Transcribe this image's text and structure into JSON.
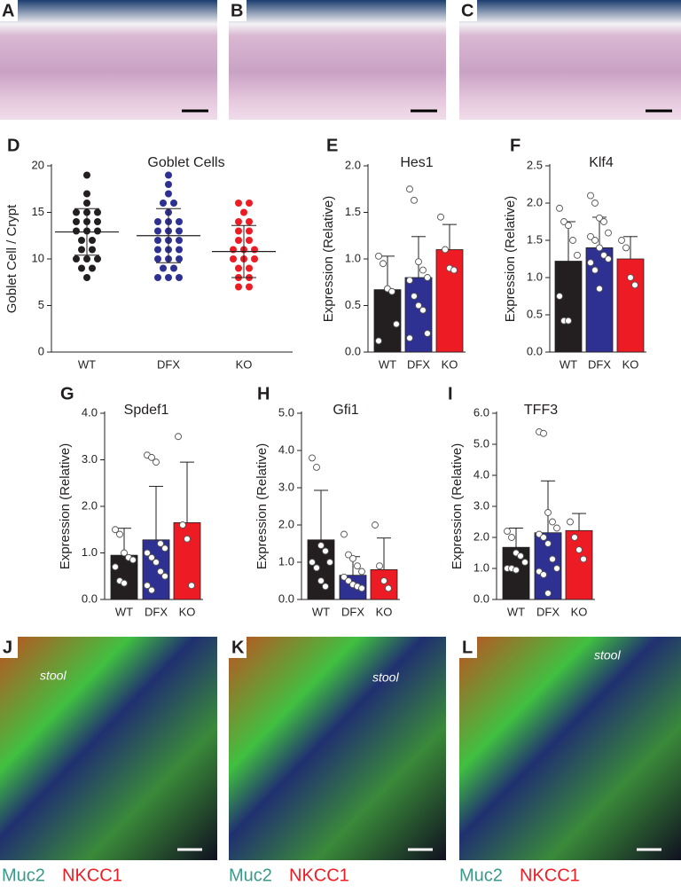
{
  "images": [
    {
      "label": "A"
    },
    {
      "label": "B"
    },
    {
      "label": "C"
    },
    {
      "label": "J",
      "annotation": "stool",
      "channels": [
        "Muc2",
        "NKCC1"
      ]
    },
    {
      "label": "K",
      "annotation": "stool",
      "channels": [
        "Muc2",
        "NKCC1"
      ]
    },
    {
      "label": "L",
      "annotation": "stool",
      "channels": [
        "Muc2",
        "NKCC1"
      ]
    }
  ],
  "chart_data": [
    {
      "type": "dot",
      "panel": "D",
      "title": "Goblet Cells",
      "ylabel": "Goblet Cell / Crypt",
      "categories": [
        "WT",
        "DFX",
        "KO"
      ],
      "ylim": [
        0,
        20
      ],
      "yticks": [
        0,
        5,
        10,
        15,
        20
      ],
      "groups": [
        {
          "color": "#231f20",
          "mean": 12.9,
          "sd": 2.5,
          "values": [
            19,
            17,
            16,
            15,
            15,
            15,
            14,
            14,
            14,
            13,
            13,
            13,
            12,
            12,
            11,
            11,
            10,
            10,
            10,
            9,
            9,
            8
          ]
        },
        {
          "color": "#2e3192",
          "mean": 12.5,
          "sd": 2.9,
          "values": [
            19,
            18,
            17,
            16,
            16,
            15,
            14,
            14,
            14,
            13,
            13,
            13,
            12,
            12,
            12,
            11,
            11,
            11,
            10,
            10,
            10,
            9,
            9,
            8,
            8,
            8
          ]
        },
        {
          "color": "#ed1c24",
          "mean": 10.8,
          "sd": 2.8,
          "values": [
            16,
            16,
            15,
            14,
            14,
            13,
            13,
            12,
            12,
            11,
            11,
            11,
            10,
            10,
            10,
            9,
            9,
            8,
            8,
            7,
            7
          ]
        }
      ]
    },
    {
      "type": "bar",
      "panel": "E",
      "title": "Hes1",
      "ylabel": "Expression (Relative)",
      "categories": [
        "WT",
        "DFX",
        "KO"
      ],
      "colors": [
        "#231f20",
        "#2e3192",
        "#ed1c24"
      ],
      "ylim": [
        0,
        2
      ],
      "yticks": [
        {
          "value": 0,
          "label": "0.0"
        },
        0.5,
        {
          "value": 1,
          "label": "1.0"
        },
        1.5,
        {
          "value": 2,
          "label": "2.0"
        }
      ],
      "values": [
        0.67,
        0.8,
        1.1
      ],
      "errors": [
        0.36,
        0.44,
        0.27
      ],
      "points": [
        [
          1.03,
          0.95,
          0.68,
          0.65,
          0.3,
          0.12
        ],
        [
          1.75,
          1.63,
          0.97,
          0.88,
          0.8,
          0.77,
          0.6,
          0.5,
          0.45,
          0.2,
          0.15
        ],
        [
          1.45,
          1.1,
          0.9,
          0.88
        ]
      ]
    },
    {
      "type": "bar",
      "panel": "F",
      "title": "Klf4",
      "ylabel": "Expression (Relative)",
      "categories": [
        "WT",
        "DFX",
        "KO"
      ],
      "colors": [
        "#231f20",
        "#2e3192",
        "#ed1c24"
      ],
      "ylim": [
        0,
        2.5
      ],
      "yticks": [
        {
          "value": 0,
          "label": "0.0"
        },
        0.5,
        {
          "value": 1,
          "label": "1.0"
        },
        1.5,
        {
          "value": 2,
          "label": "2.0"
        },
        2.5
      ],
      "values": [
        1.22,
        1.4,
        1.25
      ],
      "errors": [
        0.53,
        0.41,
        0.3
      ],
      "points": [
        [
          1.93,
          1.75,
          1.7,
          1.5,
          1.3,
          0.75,
          0.42,
          0.42
        ],
        [
          2.1,
          2.0,
          1.8,
          1.75,
          1.6,
          1.55,
          1.5,
          1.4,
          1.3,
          1.25,
          1.2,
          1.1,
          0.85
        ],
        [
          1.5,
          1.4,
          1.0,
          0.9
        ]
      ]
    },
    {
      "type": "bar",
      "panel": "G",
      "title": "Spdef1",
      "ylabel": "Expression (Relative)",
      "categories": [
        "WT",
        "DFX",
        "KO"
      ],
      "colors": [
        "#231f20",
        "#2e3192",
        "#ed1c24"
      ],
      "ylim": [
        0,
        4
      ],
      "yticks": [
        {
          "value": 0,
          "label": "0.0"
        },
        {
          "value": 1,
          "label": "1.0"
        },
        {
          "value": 2,
          "label": "2.0"
        },
        {
          "value": 3,
          "label": "3.0"
        },
        {
          "value": 4,
          "label": "4.0"
        }
      ],
      "values": [
        0.95,
        1.28,
        1.65
      ],
      "errors": [
        0.58,
        1.15,
        1.3
      ],
      "points": [
        [
          1.5,
          1.4,
          1.0,
          0.9,
          0.85,
          0.7,
          0.4,
          0.35
        ],
        [
          3.1,
          3.05,
          2.95,
          1.2,
          1.1,
          1.0,
          0.9,
          0.8,
          0.6,
          0.5,
          0.3,
          0.2
        ],
        [
          3.5,
          1.6,
          1.3,
          0.3
        ]
      ]
    },
    {
      "type": "bar",
      "panel": "H",
      "title": "Gfi1",
      "ylabel": "Expression (Relative)",
      "categories": [
        "WT",
        "DFX",
        "KO"
      ],
      "colors": [
        "#231f20",
        "#2e3192",
        "#ed1c24"
      ],
      "ylim": [
        0,
        5
      ],
      "yticks": [
        {
          "value": 0,
          "label": "0.0"
        },
        {
          "value": 1,
          "label": "1.0"
        },
        {
          "value": 2,
          "label": "2.0"
        },
        {
          "value": 3,
          "label": "3.0"
        },
        {
          "value": 4,
          "label": "4.0"
        },
        {
          "value": 5,
          "label": "5.0"
        }
      ],
      "values": [
        1.6,
        0.65,
        0.8
      ],
      "errors": [
        1.33,
        0.5,
        0.85
      ],
      "points": [
        [
          3.8,
          3.55,
          1.45,
          1.3,
          1.0,
          1.0,
          0.85,
          0.5,
          0.35
        ],
        [
          1.75,
          1.2,
          1.1,
          0.9,
          0.75,
          0.6,
          0.5,
          0.4,
          0.35,
          0.3
        ],
        [
          2.0,
          0.9,
          0.5,
          0.3
        ]
      ]
    },
    {
      "type": "bar",
      "panel": "I",
      "title": "TFF3",
      "ylabel": "Expression (Relative)",
      "categories": [
        "WT",
        "DFX",
        "KO"
      ],
      "colors": [
        "#231f20",
        "#2e3192",
        "#ed1c24"
      ],
      "ylim": [
        0,
        6
      ],
      "yticks": [
        {
          "value": 0,
          "label": "0.0"
        },
        {
          "value": 1,
          "label": "1.0"
        },
        {
          "value": 2,
          "label": "2.0"
        },
        {
          "value": 3,
          "label": "3.0"
        },
        {
          "value": 4,
          "label": "4.0"
        },
        {
          "value": 5,
          "label": "5.0"
        },
        {
          "value": 6,
          "label": "6.0"
        }
      ],
      "values": [
        1.68,
        2.15,
        2.22
      ],
      "errors": [
        0.62,
        1.67,
        0.55
      ],
      "points": [
        [
          2.2,
          2.0,
          1.5,
          1.4,
          1.2,
          1.0,
          1.0,
          0.95
        ],
        [
          5.4,
          5.35,
          2.8,
          2.5,
          2.3,
          2.1,
          2.0,
          1.8,
          1.3,
          1.0,
          0.9,
          0.8,
          0.2
        ],
        [
          2.5,
          2.0,
          1.6,
          1.3
        ]
      ]
    }
  ]
}
